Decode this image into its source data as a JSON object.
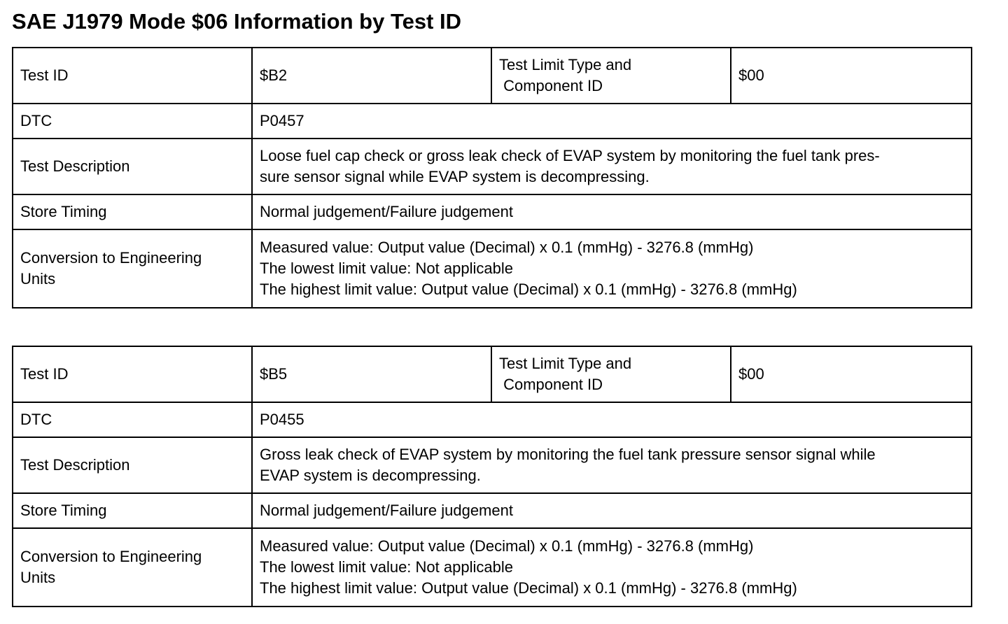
{
  "title": "SAE J1979 Mode $06 Information by Test ID",
  "tables": [
    {
      "rows": [
        [
          "Test ID",
          "$B2",
          [
            "Test Limit Type and",
            " Component ID"
          ],
          "$00"
        ],
        [
          "DTC",
          "P0457"
        ],
        [
          "Test Description",
          [
            "Loose fuel cap check or gross leak check of EVAP system by monitoring the fuel tank pres-",
            "sure sensor signal while EVAP system is decompressing."
          ]
        ],
        [
          "Store Timing",
          "Normal judgement/Failure judgement"
        ],
        [
          [
            "Conversion to Engineering",
            "Units"
          ],
          [
            "Measured value: Output value (Decimal) x 0.1 (mmHg) - 3276.8 (mmHg)",
            "The lowest limit value: Not applicable",
            "The highest limit value: Output value (Decimal) x 0.1 (mmHg) - 3276.8 (mmHg)"
          ]
        ]
      ]
    },
    {
      "rows": [
        [
          "Test ID",
          "$B5",
          [
            "Test Limit Type and",
            " Component ID"
          ],
          "$00"
        ],
        [
          "DTC",
          "P0455"
        ],
        [
          "Test Description",
          [
            "Gross leak check of EVAP system by monitoring the fuel tank pressure sensor signal while",
            "EVAP system is decompressing."
          ]
        ],
        [
          "Store Timing",
          "Normal judgement/Failure judgement"
        ],
        [
          [
            "Conversion to Engineering",
            "Units"
          ],
          [
            "Measured value: Output value (Decimal) x 0.1 (mmHg) - 3276.8 (mmHg)",
            "The lowest limit value: Not applicable",
            "The highest limit value: Output value (Decimal) x 0.1 (mmHg) - 3276.8 (mmHg)"
          ]
        ]
      ]
    }
  ]
}
